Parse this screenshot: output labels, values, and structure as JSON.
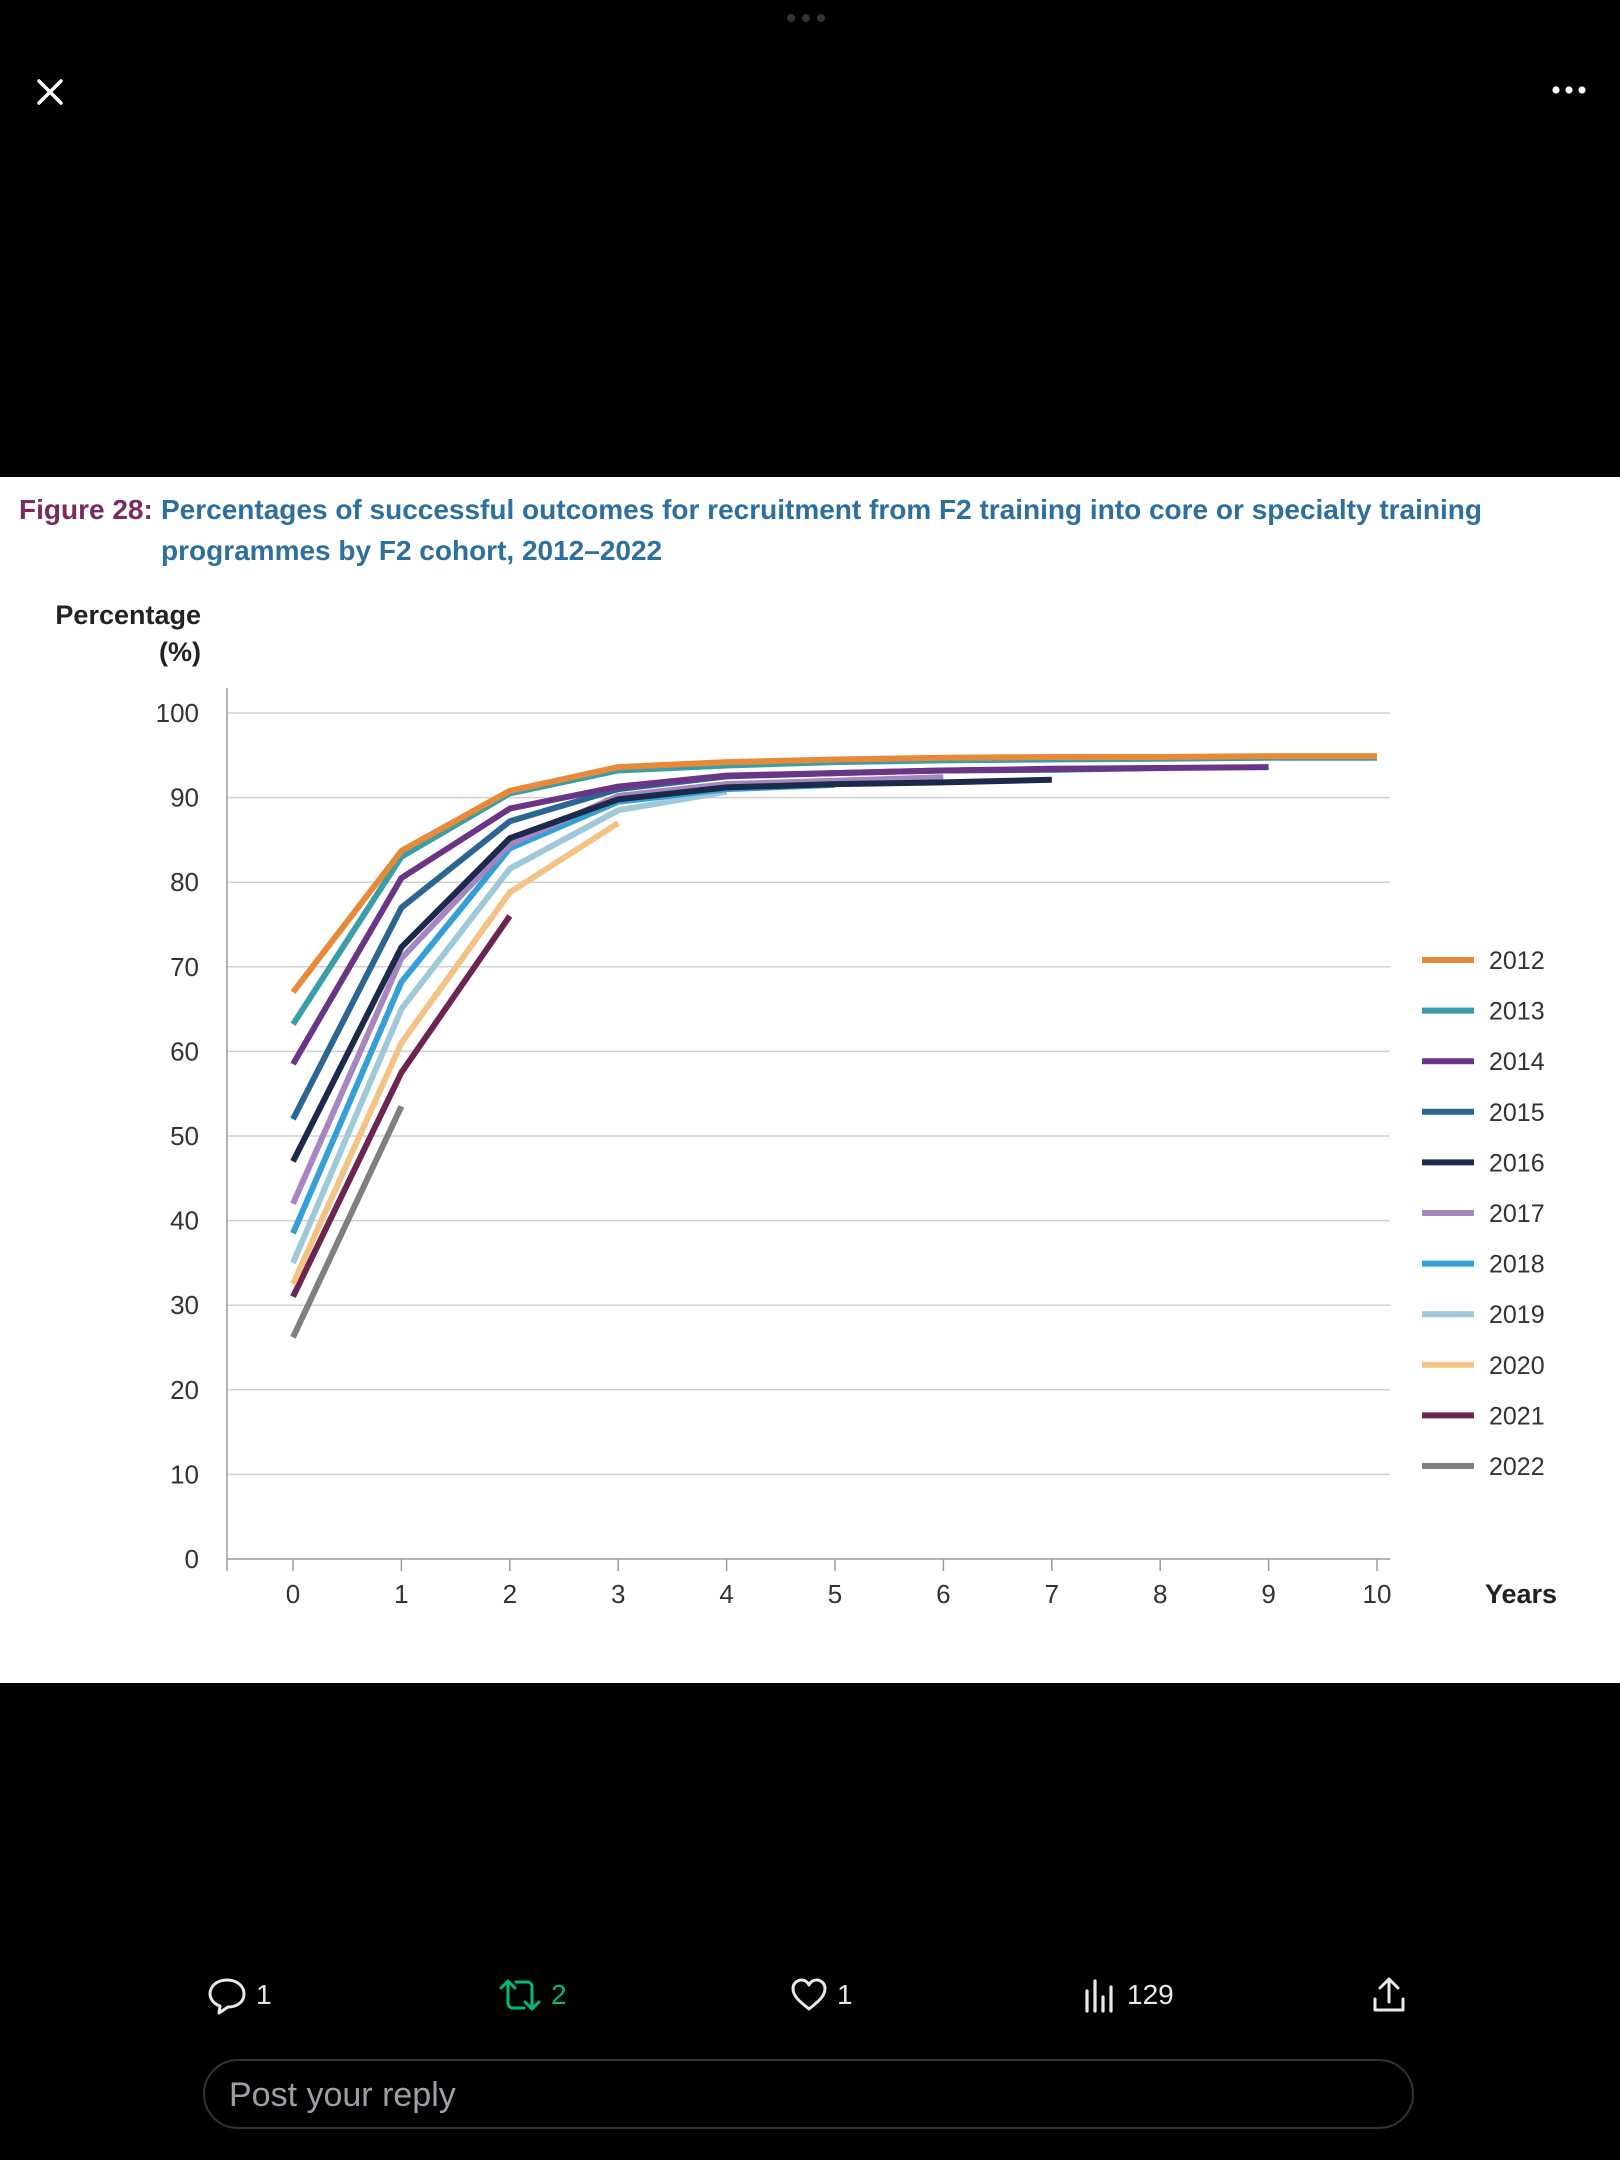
{
  "viewer": {
    "close_icon": "close-icon",
    "more_icon": "more-horizontal-icon"
  },
  "figure": {
    "number": "Figure 28:",
    "title": "Percentages of successful outcomes for recruitment from F2 training into core or specialty training programmes by F2 cohort, 2012–2022"
  },
  "chart_data": {
    "type": "line",
    "title": "Percentages of successful outcomes for recruitment from F2 training into core or specialty training programmes by F2 cohort, 2012–2022",
    "ylabel": "Percentage (%)",
    "xlabel": "Years",
    "ylim": [
      0,
      100
    ],
    "xlim": [
      0,
      10
    ],
    "yticks": [
      0,
      10,
      20,
      30,
      40,
      50,
      60,
      70,
      80,
      90,
      100
    ],
    "xticks": [
      0,
      1,
      2,
      3,
      4,
      5,
      6,
      7,
      8,
      9,
      10
    ],
    "grid": true,
    "legend_position": "right",
    "series": [
      {
        "name": "2012",
        "color": "#e8893a",
        "x": [
          0,
          1,
          2,
          3,
          4,
          5,
          6,
          7,
          8,
          9,
          10
        ],
        "y": [
          67,
          83.7,
          90.8,
          93.6,
          94.2,
          94.5,
          94.7,
          94.8,
          94.8,
          94.9,
          94.9
        ]
      },
      {
        "name": "2013",
        "color": "#3a9ea8",
        "x": [
          0,
          1,
          2,
          3,
          4,
          5,
          6,
          7,
          8,
          9,
          10
        ],
        "y": [
          63.2,
          83,
          90.5,
          93.2,
          93.8,
          94.2,
          94.4,
          94.5,
          94.6,
          94.7,
          94.7
        ]
      },
      {
        "name": "2014",
        "color": "#6b3587",
        "x": [
          0,
          1,
          2,
          3,
          4,
          5,
          6,
          7,
          8,
          9
        ],
        "y": [
          58.5,
          80.5,
          88.7,
          91.3,
          92.6,
          92.9,
          93.2,
          93.4,
          93.5,
          93.6
        ]
      },
      {
        "name": "2015",
        "color": "#2b6693",
        "x": [
          0,
          1,
          2,
          3,
          4,
          5,
          6,
          7,
          8
        ],
        "y": [
          52,
          77,
          87.2,
          91,
          92.5,
          92.9,
          93.2,
          93.3,
          93.5
        ]
      },
      {
        "name": "2016",
        "color": "#1b2a4a",
        "x": [
          0,
          1,
          2,
          3,
          4,
          5,
          6,
          7
        ],
        "y": [
          47,
          72.3,
          85.2,
          89.8,
          91.2,
          91.6,
          91.8,
          92.1
        ]
      },
      {
        "name": "2017",
        "color": "#a586c0",
        "x": [
          0,
          1,
          2,
          3,
          4,
          5,
          6
        ],
        "y": [
          42,
          71,
          84.5,
          90.2,
          91.6,
          92,
          92.4
        ]
      },
      {
        "name": "2018",
        "color": "#35a0d8",
        "x": [
          0,
          1,
          2,
          3,
          4,
          5
        ],
        "y": [
          38.5,
          68.2,
          84,
          89.5,
          91,
          91.5
        ]
      },
      {
        "name": "2019",
        "color": "#9fc9d8",
        "x": [
          0,
          1,
          2,
          3,
          4
        ],
        "y": [
          35,
          65,
          81.6,
          88.5,
          90.7
        ]
      },
      {
        "name": "2020",
        "color": "#f4c283",
        "x": [
          0,
          1,
          2,
          3
        ],
        "y": [
          32.5,
          61,
          78.8,
          87
        ]
      },
      {
        "name": "2021",
        "color": "#6c2551",
        "x": [
          0,
          1,
          2
        ],
        "y": [
          31,
          57.5,
          76
        ]
      },
      {
        "name": "2022",
        "color": "#7f7f7f",
        "x": [
          0,
          1
        ],
        "y": [
          26.2,
          53.5
        ]
      }
    ]
  },
  "actions": {
    "reply": {
      "icon": "reply-icon",
      "count": "1"
    },
    "retweet": {
      "icon": "retweet-icon",
      "count": "2",
      "color": "#00ba7c"
    },
    "like": {
      "icon": "heart-icon",
      "count": "1"
    },
    "views": {
      "icon": "views-icon",
      "count": "129"
    },
    "share": {
      "icon": "share-icon"
    }
  },
  "reply_box": {
    "placeholder": "Post your reply"
  }
}
